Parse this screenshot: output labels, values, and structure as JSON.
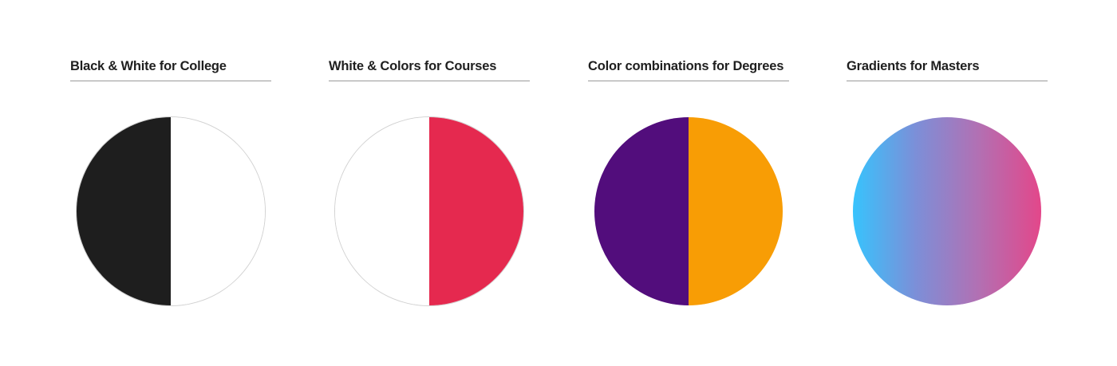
{
  "panels": [
    {
      "heading": "Black & White for College",
      "swatch": {
        "kind": "split",
        "left_color": "#1e1e1e",
        "right_color": "#ffffff",
        "outlined": true
      }
    },
    {
      "heading": "White & Colors for Courses",
      "swatch": {
        "kind": "split",
        "left_color": "#ffffff",
        "right_color": "#e5294f",
        "outlined": true
      }
    },
    {
      "heading": "Color combinations for Degrees",
      "swatch": {
        "kind": "split",
        "left_color": "#520d7c",
        "right_color": "#f89d05",
        "outlined": false
      }
    },
    {
      "heading": "Gradients for Masters",
      "swatch": {
        "kind": "gradient",
        "gradient_colors": [
          "#37c3fd",
          "#7c8fd8",
          "#b270b3",
          "#e3478a"
        ],
        "outlined": false
      }
    }
  ]
}
